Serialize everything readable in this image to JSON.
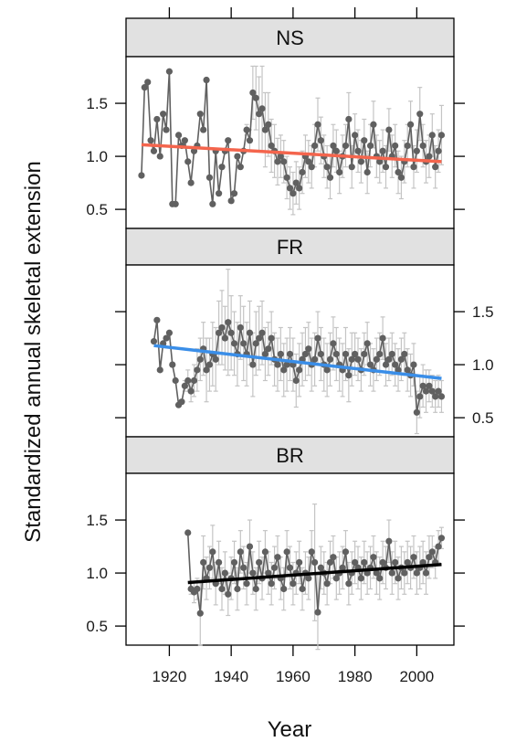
{
  "chart_data": {
    "type": "scatter",
    "layout": "vertical-panels",
    "xlabel": "Year",
    "ylabel": "Standardized annual skeletal extension",
    "xlim": [
      1906,
      2012
    ],
    "xticks": [
      1920,
      1940,
      1960,
      1980,
      2000
    ],
    "ylim": [
      0.32,
      1.94
    ],
    "yticks": [
      0.5,
      1.0,
      1.5
    ],
    "ytick_labels": [
      "0.5",
      "1.0",
      "1.5"
    ],
    "grid": false,
    "point_color": "#606060",
    "errorbar_color": "#c4c4c4",
    "panels": [
      {
        "title": "NS",
        "ytick_side": "left",
        "trend": {
          "x": [
            1911,
            2008
          ],
          "y": [
            1.11,
            0.95
          ],
          "color": "#f4654d"
        },
        "x": [
          1911,
          1912,
          1913,
          1914,
          1915,
          1916,
          1917,
          1918,
          1919,
          1920,
          1921,
          1922,
          1923,
          1924,
          1925,
          1926,
          1927,
          1928,
          1929,
          1930,
          1931,
          1932,
          1933,
          1934,
          1935,
          1936,
          1937,
          1938,
          1939,
          1940,
          1941,
          1942,
          1943,
          1944,
          1945,
          1946,
          1947,
          1948,
          1949,
          1950,
          1951,
          1952,
          1953,
          1954,
          1955,
          1956,
          1957,
          1958,
          1959,
          1960,
          1961,
          1962,
          1963,
          1964,
          1965,
          1966,
          1967,
          1968,
          1969,
          1970,
          1971,
          1972,
          1973,
          1974,
          1975,
          1976,
          1977,
          1978,
          1979,
          1980,
          1981,
          1982,
          1983,
          1984,
          1985,
          1986,
          1987,
          1988,
          1989,
          1990,
          1991,
          1992,
          1993,
          1994,
          1995,
          1996,
          1997,
          1998,
          1999,
          2000,
          2001,
          2002,
          2003,
          2004,
          2005,
          2006,
          2007,
          2008
        ],
        "y": [
          0.82,
          1.65,
          1.7,
          1.15,
          1.05,
          1.35,
          1.0,
          1.4,
          1.25,
          1.8,
          0.55,
          0.55,
          1.2,
          1.1,
          1.15,
          0.95,
          0.75,
          1.05,
          1.1,
          1.4,
          1.25,
          1.72,
          0.8,
          0.55,
          1.05,
          0.65,
          0.9,
          1.05,
          1.15,
          0.58,
          0.65,
          1.0,
          0.9,
          1.05,
          1.25,
          1.15,
          1.6,
          1.55,
          1.4,
          1.45,
          1.25,
          1.3,
          1.1,
          1.05,
          0.95,
          1.0,
          0.95,
          0.8,
          0.7,
          0.65,
          0.75,
          0.7,
          0.85,
          1.0,
          0.95,
          0.9,
          1.1,
          1.3,
          1.15,
          1.0,
          0.9,
          0.8,
          1.1,
          1.05,
          0.85,
          1.0,
          1.1,
          1.35,
          0.9,
          1.2,
          1.05,
          0.95,
          1.15,
          0.85,
          1.1,
          1.3,
          1.0,
          0.95,
          1.05,
          0.9,
          1.25,
          1.0,
          1.1,
          0.85,
          0.8,
          0.95,
          1.1,
          1.3,
          0.9,
          1.05,
          1.4,
          1.1,
          0.95,
          1.0,
          1.2,
          0.9,
          1.05,
          1.2
        ],
        "err": [
          0,
          0,
          0,
          0,
          0,
          0,
          0,
          0,
          0,
          0,
          0,
          0,
          0,
          0,
          0,
          0,
          0,
          0,
          0,
          0,
          0,
          0,
          0,
          0,
          0,
          0,
          0,
          0,
          0,
          0,
          0,
          0,
          0,
          0,
          0.05,
          0.1,
          0.25,
          0.3,
          0.35,
          0.4,
          0.35,
          0.3,
          0.25,
          0.25,
          0.22,
          0.2,
          0.2,
          0.2,
          0.2,
          0.2,
          0.2,
          0.2,
          0.2,
          0.2,
          0.2,
          0.2,
          0.2,
          0.25,
          0.22,
          0.2,
          0.2,
          0.2,
          0.2,
          0.2,
          0.2,
          0.2,
          0.2,
          0.25,
          0.2,
          0.2,
          0.2,
          0.2,
          0.2,
          0.2,
          0.2,
          0.22,
          0.2,
          0.2,
          0.2,
          0.2,
          0.2,
          0.2,
          0.2,
          0.2,
          0.2,
          0.2,
          0.2,
          0.22,
          0.2,
          0.2,
          0.25,
          0.2,
          0.2,
          0.2,
          0.2,
          0.2,
          0.2,
          0.28
        ]
      },
      {
        "title": "FR",
        "ytick_side": "right",
        "trend": {
          "x": [
            1915,
            2008
          ],
          "y": [
            1.18,
            0.87
          ],
          "color": "#3a8ee8"
        },
        "x": [
          1915,
          1916,
          1917,
          1918,
          1919,
          1920,
          1921,
          1922,
          1923,
          1924,
          1925,
          1926,
          1927,
          1928,
          1929,
          1930,
          1931,
          1932,
          1933,
          1934,
          1935,
          1936,
          1937,
          1938,
          1939,
          1940,
          1941,
          1942,
          1943,
          1944,
          1945,
          1946,
          1947,
          1948,
          1949,
          1950,
          1951,
          1952,
          1953,
          1954,
          1955,
          1956,
          1957,
          1958,
          1959,
          1960,
          1961,
          1962,
          1963,
          1964,
          1965,
          1966,
          1967,
          1968,
          1969,
          1970,
          1971,
          1972,
          1973,
          1974,
          1975,
          1976,
          1977,
          1978,
          1979,
          1980,
          1981,
          1982,
          1983,
          1984,
          1985,
          1986,
          1987,
          1988,
          1989,
          1990,
          1991,
          1992,
          1993,
          1994,
          1995,
          1996,
          1997,
          1998,
          1999,
          2000,
          2001,
          2002,
          2003,
          2004,
          2005,
          2006,
          2007,
          2008
        ],
        "y": [
          1.22,
          1.42,
          0.95,
          1.2,
          1.25,
          1.3,
          1.0,
          0.85,
          0.62,
          0.65,
          0.8,
          0.85,
          0.75,
          0.85,
          0.95,
          1.05,
          1.15,
          0.95,
          1.0,
          1.1,
          1.05,
          1.3,
          1.35,
          1.25,
          1.4,
          1.3,
          1.2,
          1.1,
          1.35,
          1.2,
          1.1,
          1.3,
          1.0,
          1.2,
          1.25,
          1.3,
          1.1,
          1.15,
          1.25,
          1.05,
          1.0,
          1.1,
          0.95,
          1.0,
          1.1,
          1.0,
          0.85,
          0.95,
          1.05,
          1.1,
          1.15,
          1.0,
          1.05,
          1.25,
          1.1,
          1.0,
          0.95,
          1.05,
          1.2,
          1.1,
          1.0,
          0.95,
          1.1,
          0.9,
          1.05,
          1.1,
          1.05,
          0.95,
          1.1,
          1.2,
          1.0,
          0.95,
          1.05,
          1.1,
          1.25,
          1.0,
          1.05,
          1.1,
          1.0,
          0.95,
          1.05,
          1.1,
          0.95,
          0.9,
          1.0,
          0.55,
          0.7,
          0.8,
          0.75,
          0.8,
          0.75,
          0.7,
          0.75,
          0.7
        ],
        "err": [
          0,
          0,
          0,
          0,
          0,
          0,
          0,
          0,
          0,
          0,
          0.05,
          0.1,
          0.1,
          0.15,
          0.2,
          0.2,
          0.25,
          0.3,
          0.25,
          0.3,
          0.3,
          0.3,
          0.35,
          0.3,
          0.5,
          0.35,
          0.3,
          0.3,
          0.3,
          0.35,
          0.3,
          0.3,
          0.3,
          0.3,
          0.3,
          0.3,
          0.25,
          0.25,
          0.25,
          0.25,
          0.25,
          0.25,
          0.25,
          0.25,
          0.25,
          0.25,
          0.25,
          0.25,
          0.25,
          0.25,
          0.25,
          0.25,
          0.25,
          0.25,
          0.25,
          0.25,
          0.25,
          0.25,
          0.25,
          0.25,
          0.25,
          0.25,
          0.25,
          0.25,
          0.25,
          0.2,
          0.2,
          0.2,
          0.2,
          0.2,
          0.2,
          0.2,
          0.2,
          0.2,
          0.2,
          0.2,
          0.2,
          0.2,
          0.2,
          0.2,
          0.2,
          0.2,
          0.2,
          0.2,
          0.2,
          0.2,
          0.2,
          0.2,
          0.2,
          0.15,
          0.15,
          0.15,
          0.15,
          0.15
        ]
      },
      {
        "title": "BR",
        "ytick_side": "left",
        "trend": {
          "x": [
            1926,
            2008
          ],
          "y": [
            0.91,
            1.08
          ],
          "color": "#000000"
        },
        "x": [
          1926,
          1927,
          1928,
          1929,
          1930,
          1931,
          1932,
          1933,
          1934,
          1935,
          1936,
          1937,
          1938,
          1939,
          1940,
          1941,
          1942,
          1943,
          1944,
          1945,
          1946,
          1947,
          1948,
          1949,
          1950,
          1951,
          1952,
          1953,
          1954,
          1955,
          1956,
          1957,
          1958,
          1959,
          1960,
          1961,
          1962,
          1963,
          1964,
          1965,
          1966,
          1967,
          1968,
          1969,
          1970,
          1971,
          1972,
          1973,
          1974,
          1975,
          1976,
          1977,
          1978,
          1979,
          1980,
          1981,
          1982,
          1983,
          1984,
          1985,
          1986,
          1987,
          1988,
          1989,
          1990,
          1991,
          1992,
          1993,
          1994,
          1995,
          1996,
          1997,
          1998,
          1999,
          2000,
          2001,
          2002,
          2003,
          2004,
          2005,
          2006,
          2007,
          2008
        ],
        "y": [
          1.38,
          0.85,
          0.82,
          0.85,
          0.62,
          1.1,
          0.95,
          1.05,
          1.2,
          0.9,
          1.1,
          0.85,
          1.0,
          0.8,
          0.95,
          1.1,
          0.85,
          1.2,
          1.05,
          0.9,
          1.25,
          1.0,
          0.85,
          1.1,
          0.95,
          1.2,
          1.0,
          0.9,
          1.05,
          1.15,
          0.95,
          0.85,
          1.2,
          1.05,
          0.9,
          1.0,
          1.1,
          0.85,
          1.0,
          0.95,
          1.2,
          1.1,
          0.63,
          1.05,
          1.0,
          0.9,
          1.1,
          1.15,
          0.95,
          1.0,
          1.05,
          1.2,
          0.9,
          1.0,
          1.1,
          1.05,
          0.95,
          1.1,
          1.0,
          1.05,
          1.15,
          1.0,
          0.95,
          1.1,
          1.05,
          1.3,
          1.0,
          1.1,
          0.95,
          1.05,
          1.0,
          1.1,
          1.05,
          1.15,
          1.0,
          1.05,
          1.1,
          1.0,
          1.15,
          1.2,
          1.1,
          1.25,
          1.33
        ],
        "err": [
          0,
          0.05,
          0.1,
          0.1,
          0.3,
          0.25,
          0.2,
          0.2,
          0.25,
          0.2,
          0.2,
          0.2,
          0.2,
          0.2,
          0.2,
          0.2,
          0.2,
          0.2,
          0.2,
          0.2,
          0.25,
          0.2,
          0.2,
          0.2,
          0.2,
          0.2,
          0.2,
          0.2,
          0.2,
          0.2,
          0.2,
          0.2,
          0.2,
          0.2,
          0.2,
          0.2,
          0.2,
          0.2,
          0.2,
          0.2,
          0.2,
          0.55,
          0.35,
          0.2,
          0.2,
          0.2,
          0.2,
          0.2,
          0.2,
          0.2,
          0.2,
          0.2,
          0.2,
          0.2,
          0.2,
          0.2,
          0.2,
          0.2,
          0.2,
          0.2,
          0.2,
          0.2,
          0.2,
          0.2,
          0.2,
          0.2,
          0.2,
          0.2,
          0.2,
          0.2,
          0.2,
          0.2,
          0.2,
          0.2,
          0.2,
          0.2,
          0.2,
          0.2,
          0.2,
          0.15,
          0.15,
          0.15,
          0.1
        ]
      }
    ]
  }
}
